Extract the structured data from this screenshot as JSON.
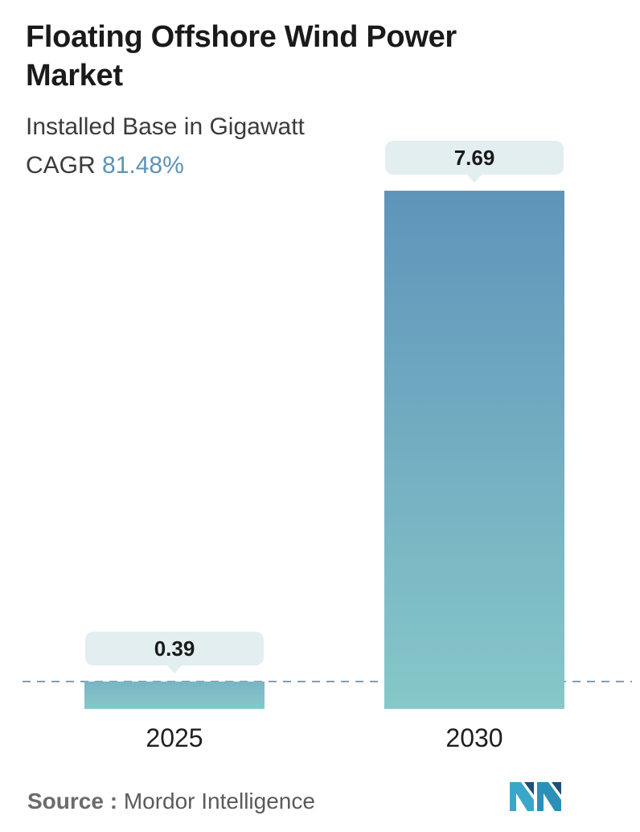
{
  "title": "Floating Offshore Wind Power Market",
  "subtitle": "Installed Base in Gigawatt",
  "cagr": {
    "label": "CAGR",
    "value": "81.48%"
  },
  "source": {
    "label": "Source :",
    "name": "Mordor Intelligence"
  },
  "colors": {
    "bar_top": "#5f94ba",
    "bar_bottom": "#86c8c9",
    "label_bg": "#e3eef1",
    "dash": "#5a7f96",
    "accent": "#5c93b7"
  },
  "chart_data": {
    "type": "bar",
    "categories": [
      "2025",
      "2030"
    ],
    "values": [
      0.39,
      7.69
    ],
    "value_labels": [
      "0.39",
      "7.69"
    ],
    "title": "Floating Offshore Wind Power Market",
    "subtitle": "Installed Base in Gigawatt",
    "ylim": [
      0,
      7.69
    ],
    "baseline_reference": "dashed line at top of first bar",
    "grid": false
  }
}
